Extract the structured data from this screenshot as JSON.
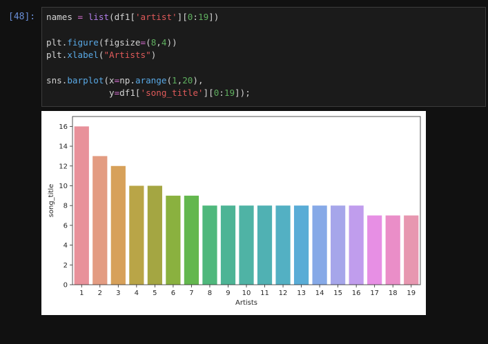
{
  "cell": {
    "prompt": "[48]:",
    "code_lines": [
      [
        {
          "t": "names ",
          "c": "def"
        },
        {
          "t": "=",
          "c": "op"
        },
        {
          "t": " ",
          "c": "def"
        },
        {
          "t": "list",
          "c": "kw"
        },
        {
          "t": "(df1[",
          "c": "def"
        },
        {
          "t": "'artist'",
          "c": "str"
        },
        {
          "t": "][",
          "c": "def"
        },
        {
          "t": "0",
          "c": "num"
        },
        {
          "t": ":",
          "c": "def"
        },
        {
          "t": "19",
          "c": "num"
        },
        {
          "t": "])",
          "c": "def"
        }
      ],
      [],
      [
        {
          "t": "plt.",
          "c": "def"
        },
        {
          "t": "figure",
          "c": "fn"
        },
        {
          "t": "(figsize",
          "c": "def"
        },
        {
          "t": "=",
          "c": "op"
        },
        {
          "t": "(",
          "c": "def"
        },
        {
          "t": "8",
          "c": "num"
        },
        {
          "t": ",",
          "c": "def"
        },
        {
          "t": "4",
          "c": "num"
        },
        {
          "t": "))",
          "c": "def"
        }
      ],
      [
        {
          "t": "plt.",
          "c": "def"
        },
        {
          "t": "xlabel",
          "c": "fn"
        },
        {
          "t": "(",
          "c": "def"
        },
        {
          "t": "\"Artists\"",
          "c": "str"
        },
        {
          "t": ")",
          "c": "def"
        }
      ],
      [],
      [
        {
          "t": "sns.",
          "c": "def"
        },
        {
          "t": "barplot",
          "c": "fn"
        },
        {
          "t": "(x",
          "c": "def"
        },
        {
          "t": "=",
          "c": "op"
        },
        {
          "t": "np.",
          "c": "def"
        },
        {
          "t": "arange",
          "c": "fn"
        },
        {
          "t": "(",
          "c": "def"
        },
        {
          "t": "1",
          "c": "num"
        },
        {
          "t": ",",
          "c": "def"
        },
        {
          "t": "20",
          "c": "num"
        },
        {
          "t": "),",
          "c": "def"
        }
      ],
      [
        {
          "t": "            y",
          "c": "def"
        },
        {
          "t": "=",
          "c": "op"
        },
        {
          "t": "df1[",
          "c": "def"
        },
        {
          "t": "'song_title'",
          "c": "str"
        },
        {
          "t": "][",
          "c": "def"
        },
        {
          "t": "0",
          "c": "num"
        },
        {
          "t": ":",
          "c": "def"
        },
        {
          "t": "19",
          "c": "num"
        },
        {
          "t": "]);",
          "c": "def"
        }
      ]
    ]
  },
  "colors": {
    "def": "#d4d4d4",
    "kw": "#b07ee8",
    "fn": "#59a9e6",
    "str": "#e05a5a",
    "num": "#5fb05f",
    "op": "#d66ed0"
  },
  "chart_data": {
    "type": "bar",
    "categories": [
      "1",
      "2",
      "3",
      "4",
      "5",
      "6",
      "7",
      "8",
      "9",
      "10",
      "11",
      "12",
      "13",
      "14",
      "15",
      "16",
      "17",
      "18",
      "19"
    ],
    "values": [
      16,
      13,
      12,
      10,
      10,
      9,
      9,
      8,
      8,
      8,
      8,
      8,
      8,
      8,
      8,
      8,
      7,
      7,
      7
    ],
    "colors": [
      "#e8919a",
      "#e39c82",
      "#d7a15a",
      "#b9a547",
      "#a4a642",
      "#8ab13f",
      "#63b74e",
      "#4fb87c",
      "#4db495",
      "#4fb3a5",
      "#50b1b3",
      "#53b0c3",
      "#59acd6",
      "#86a9e7",
      "#a6a6ea",
      "#c09ded",
      "#e78fe4",
      "#ea8ec8",
      "#e797b0"
    ],
    "xlabel": "Artists",
    "ylabel": "song_title",
    "ylim": [
      0,
      17
    ],
    "yticks": [
      0,
      2,
      4,
      6,
      8,
      10,
      12,
      14,
      16
    ],
    "grid": false
  }
}
